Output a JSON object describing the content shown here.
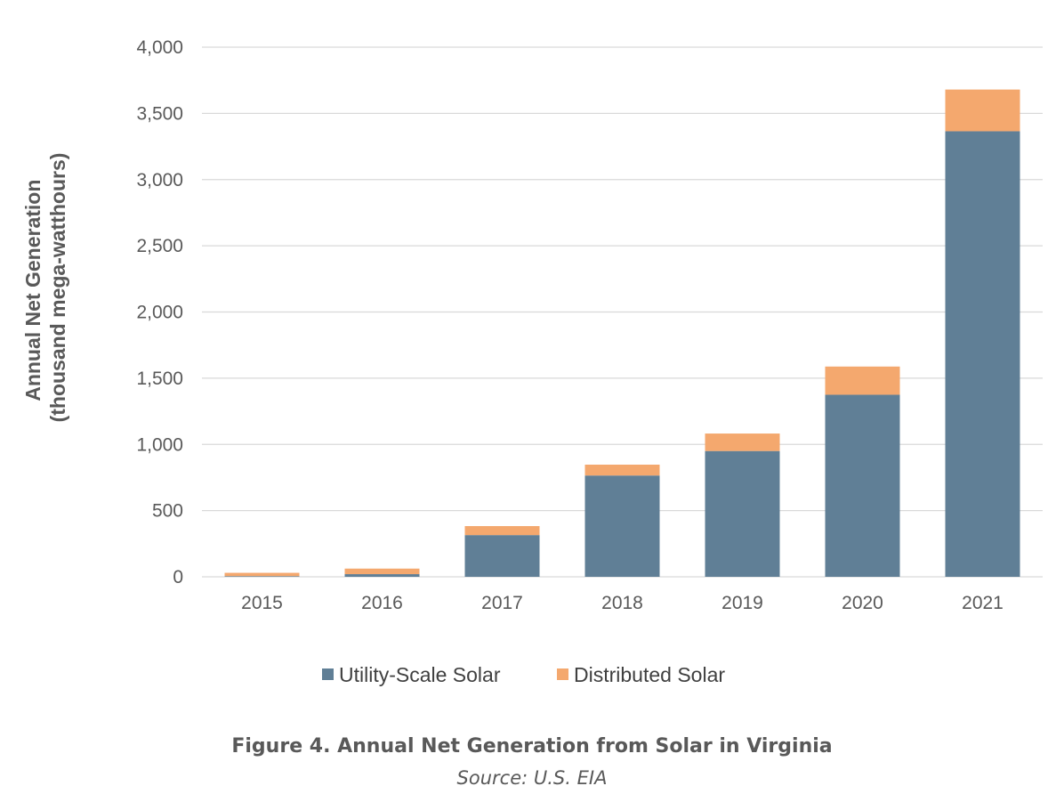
{
  "chart_data": {
    "type": "bar",
    "stacked": true,
    "categories": [
      "2015",
      "2016",
      "2017",
      "2018",
      "2019",
      "2020",
      "2021"
    ],
    "series": [
      {
        "name": "Utility-Scale Solar",
        "color": "#607f96",
        "values": [
          5,
          20,
          315,
          765,
          950,
          1375,
          3365
        ]
      },
      {
        "name": "Distributed Solar",
        "color": "#f4a86e",
        "values": [
          25,
          42,
          68,
          82,
          132,
          213,
          315
        ]
      }
    ],
    "ylabel_line1": "Annual Net Generation",
    "ylabel_line2": "(thousand mega-watthours)",
    "ylim": [
      0,
      4000
    ],
    "yticks": [
      0,
      500,
      1000,
      1500,
      2000,
      2500,
      3000,
      3500,
      4000
    ],
    "ytick_labels": [
      "0",
      "500",
      "1,000",
      "1,500",
      "2,000",
      "2,500",
      "3,000",
      "3,500",
      "4,000"
    ],
    "grid": true,
    "legend_position": "bottom"
  },
  "caption": {
    "title": "Figure 4. Annual Net Generation from Solar in Virginia",
    "source": "Source: U.S. EIA"
  }
}
